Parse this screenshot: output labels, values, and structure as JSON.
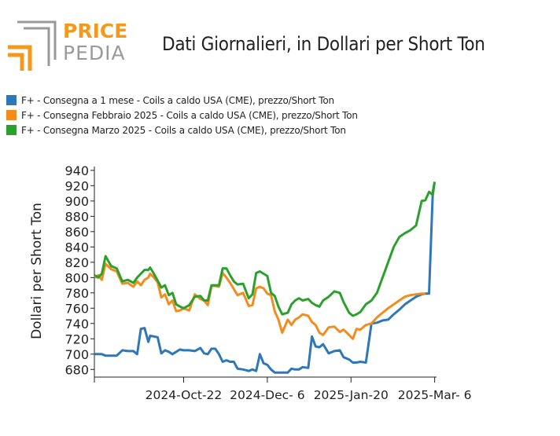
{
  "logo": {
    "word_top": "PRICE",
    "word_bottom": "PEDIA",
    "colors": {
      "orange": "#F39A1E",
      "gray": "#9A9A9A"
    }
  },
  "chart_data": {
    "type": "line",
    "title": "Dati Giornalieri, in Dollari per Short Ton",
    "ylabel": "Dollari per Short Ton",
    "xlabel": "",
    "ylim": [
      670,
      945
    ],
    "yticks": [
      680,
      700,
      720,
      740,
      760,
      780,
      800,
      820,
      840,
      860,
      880,
      900,
      920,
      940
    ],
    "xlim": [
      "2024-09-04",
      "2025-03-07"
    ],
    "xticks": [
      {
        "date": "2024-10-22",
        "label": "2024-Oct-22"
      },
      {
        "date": "2024-12-06",
        "label": "2024-Dec- 6"
      },
      {
        "date": "2025-01-20",
        "label": "2025-Jan-20"
      },
      {
        "date": "2025-03-06",
        "label": "2025-Mar- 6"
      }
    ],
    "grid": false,
    "legend_position": "top-left",
    "series": [
      {
        "name": "F+ - Consegna a 1 mese - Coils a caldo USA (CME), prezzo/Short Ton",
        "color": "#2E77B8",
        "x": [
          "2024-09-04",
          "2024-09-06",
          "2024-09-08",
          "2024-09-10",
          "2024-09-13",
          "2024-09-16",
          "2024-09-19",
          "2024-09-22",
          "2024-09-25",
          "2024-09-27",
          "2024-09-29",
          "2024-10-01",
          "2024-10-03",
          "2024-10-04",
          "2024-10-06",
          "2024-10-08",
          "2024-10-10",
          "2024-10-12",
          "2024-10-14",
          "2024-10-16",
          "2024-10-18",
          "2024-10-20",
          "2024-10-22",
          "2024-10-25",
          "2024-10-28",
          "2024-10-31",
          "2024-11-02",
          "2024-11-04",
          "2024-11-06",
          "2024-11-08",
          "2024-11-10",
          "2024-11-12",
          "2024-11-14",
          "2024-11-16",
          "2024-11-18",
          "2024-11-20",
          "2024-11-23",
          "2024-11-26",
          "2024-11-28",
          "2024-11-30",
          "2024-12-02",
          "2024-12-04",
          "2024-12-06",
          "2024-12-08",
          "2024-12-10",
          "2024-12-12",
          "2024-12-14",
          "2024-12-17",
          "2024-12-19",
          "2024-12-21",
          "2024-12-23",
          "2024-12-25",
          "2024-12-28",
          "2024-12-30",
          "2025-01-01",
          "2025-01-03",
          "2025-01-05",
          "2025-01-08",
          "2025-01-11",
          "2025-01-14",
          "2025-01-16",
          "2025-01-19",
          "2025-01-21",
          "2025-01-23",
          "2025-01-25",
          "2025-01-28",
          "2025-01-31",
          "2025-02-03",
          "2025-02-06",
          "2025-02-09",
          "2025-02-12",
          "2025-02-15",
          "2025-02-18",
          "2025-02-21",
          "2025-02-24",
          "2025-02-27",
          "2025-03-01",
          "2025-03-03",
          "2025-03-05",
          "2025-03-06"
        ],
        "y": [
          700,
          700,
          700,
          698,
          698,
          698,
          705,
          704,
          704,
          700,
          733,
          734,
          716,
          724,
          723,
          722,
          701,
          705,
          703,
          700,
          703,
          706,
          705,
          705,
          704,
          708,
          701,
          700,
          707,
          707,
          700,
          690,
          692,
          690,
          690,
          681,
          680,
          678,
          680,
          678,
          700,
          688,
          686,
          680,
          676,
          676,
          676,
          676,
          681,
          680,
          680,
          683,
          682,
          723,
          710,
          709,
          713,
          701,
          704,
          705,
          696,
          693,
          689,
          689,
          690,
          689,
          740,
          741,
          744,
          745,
          752,
          758,
          765,
          770,
          775,
          778,
          779,
          779,
          912,
          925
        ]
      },
      {
        "name": "F+ - Consegna Febbraio 2025 - Coils a caldo USA (CME), prezzo/Short Ton",
        "color": "#F28C1E",
        "x": [
          "2024-09-04",
          "2024-09-06",
          "2024-09-08",
          "2024-09-10",
          "2024-09-13",
          "2024-09-16",
          "2024-09-19",
          "2024-09-22",
          "2024-09-25",
          "2024-09-27",
          "2024-09-29",
          "2024-10-01",
          "2024-10-03",
          "2024-10-04",
          "2024-10-06",
          "2024-10-08",
          "2024-10-10",
          "2024-10-12",
          "2024-10-14",
          "2024-10-16",
          "2024-10-18",
          "2024-10-20",
          "2024-10-22",
          "2024-10-25",
          "2024-10-28",
          "2024-10-31",
          "2024-11-02",
          "2024-11-04",
          "2024-11-06",
          "2024-11-08",
          "2024-11-10",
          "2024-11-12",
          "2024-11-14",
          "2024-11-16",
          "2024-11-18",
          "2024-11-20",
          "2024-11-23",
          "2024-11-26",
          "2024-11-28",
          "2024-11-30",
          "2024-12-02",
          "2024-12-04",
          "2024-12-06",
          "2024-12-08",
          "2024-12-10",
          "2024-12-12",
          "2024-12-14",
          "2024-12-17",
          "2024-12-19",
          "2024-12-21",
          "2024-12-23",
          "2024-12-25",
          "2024-12-28",
          "2024-12-30",
          "2025-01-01",
          "2025-01-03",
          "2025-01-05",
          "2025-01-08",
          "2025-01-11",
          "2025-01-14",
          "2025-01-16",
          "2025-01-19",
          "2025-01-21",
          "2025-01-23",
          "2025-01-25",
          "2025-01-28",
          "2025-01-31",
          "2025-02-03",
          "2025-02-06",
          "2025-02-09",
          "2025-02-12",
          "2025-02-15",
          "2025-02-18",
          "2025-02-21",
          "2025-02-24",
          "2025-02-27",
          "2025-03-01"
        ],
        "y": [
          800,
          803,
          797,
          818,
          811,
          808,
          792,
          793,
          788,
          795,
          790,
          797,
          800,
          805,
          800,
          794,
          774,
          778,
          765,
          770,
          756,
          757,
          760,
          757,
          778,
          772,
          770,
          764,
          789,
          789,
          788,
          806,
          800,
          793,
          785,
          777,
          780,
          763,
          764,
          786,
          788,
          786,
          779,
          777,
          756,
          745,
          728,
          745,
          738,
          745,
          748,
          752,
          750,
          742,
          738,
          728,
          725,
          735,
          736,
          729,
          732,
          725,
          720,
          733,
          732,
          738,
          740,
          748,
          754,
          760,
          765,
          770,
          775,
          777,
          778,
          779,
          779
        ]
      },
      {
        "name": "F+ - Consegna Marzo 2025 - Coils a caldo USA (CME), prezzo/Short Ton",
        "color": "#2CA02C",
        "x": [
          "2024-09-04",
          "2024-09-06",
          "2024-09-08",
          "2024-09-10",
          "2024-09-13",
          "2024-09-16",
          "2024-09-19",
          "2024-09-22",
          "2024-09-25",
          "2024-09-27",
          "2024-09-29",
          "2024-10-01",
          "2024-10-03",
          "2024-10-04",
          "2024-10-06",
          "2024-10-08",
          "2024-10-10",
          "2024-10-12",
          "2024-10-14",
          "2024-10-16",
          "2024-10-18",
          "2024-10-20",
          "2024-10-22",
          "2024-10-25",
          "2024-10-28",
          "2024-10-31",
          "2024-11-02",
          "2024-11-04",
          "2024-11-06",
          "2024-11-08",
          "2024-11-10",
          "2024-11-12",
          "2024-11-14",
          "2024-11-16",
          "2024-11-18",
          "2024-11-20",
          "2024-11-23",
          "2024-11-26",
          "2024-11-28",
          "2024-11-30",
          "2024-12-02",
          "2024-12-04",
          "2024-12-06",
          "2024-12-08",
          "2024-12-10",
          "2024-12-12",
          "2024-12-14",
          "2024-12-17",
          "2024-12-19",
          "2024-12-21",
          "2024-12-23",
          "2024-12-25",
          "2024-12-28",
          "2024-12-30",
          "2025-01-01",
          "2025-01-03",
          "2025-01-05",
          "2025-01-08",
          "2025-01-11",
          "2025-01-14",
          "2025-01-16",
          "2025-01-19",
          "2025-01-21",
          "2025-01-23",
          "2025-01-25",
          "2025-01-28",
          "2025-01-31",
          "2025-02-03",
          "2025-02-06",
          "2025-02-09",
          "2025-02-12",
          "2025-02-15",
          "2025-02-18",
          "2025-02-21",
          "2025-02-24",
          "2025-02-27",
          "2025-03-01",
          "2025-03-03",
          "2025-03-05",
          "2025-03-06"
        ],
        "y": [
          803,
          800,
          805,
          828,
          815,
          812,
          795,
          797,
          793,
          800,
          805,
          810,
          810,
          813,
          805,
          796,
          787,
          790,
          777,
          780,
          765,
          762,
          760,
          764,
          775,
          776,
          770,
          770,
          790,
          790,
          790,
          812,
          812,
          803,
          795,
          791,
          792,
          773,
          778,
          806,
          808,
          805,
          802,
          780,
          776,
          762,
          752,
          754,
          765,
          770,
          773,
          770,
          772,
          767,
          764,
          762,
          770,
          775,
          782,
          780,
          768,
          754,
          750,
          752,
          755,
          765,
          770,
          780,
          800,
          820,
          840,
          853,
          858,
          862,
          868,
          900,
          901,
          912,
          908,
          925
        ]
      }
    ]
  }
}
